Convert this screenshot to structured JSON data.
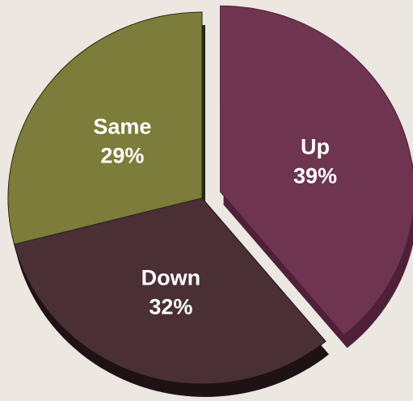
{
  "chart_data": {
    "type": "pie",
    "style": "3d-exploded",
    "slices": [
      {
        "label": "Up",
        "value": 39,
        "value_text": "39%",
        "color": "#6e3450",
        "side_color": "#4f2138",
        "exploded": true
      },
      {
        "label": "Down",
        "value": 32,
        "value_text": "32%",
        "color": "#4a2f35",
        "side_color": "#1e1215",
        "exploded": false
      },
      {
        "label": "Same",
        "value": 29,
        "value_text": "29%",
        "color": "#7c7c3b",
        "side_color": "#2a2a14",
        "exploded": false
      }
    ],
    "background": "#ece7e1"
  }
}
